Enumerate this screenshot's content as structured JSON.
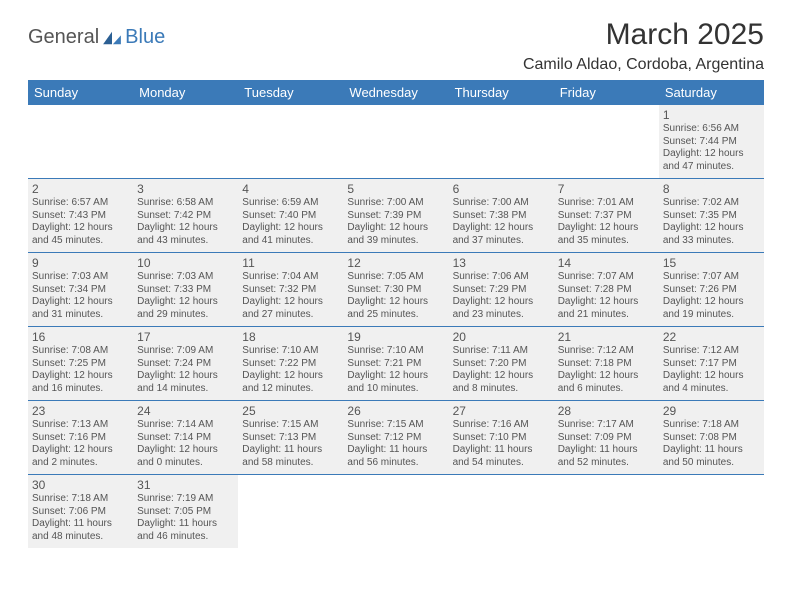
{
  "brand": {
    "part1": "General",
    "part2": "Blue"
  },
  "title": "March 2025",
  "location": "Camilo Aldao, Cordoba, Argentina",
  "dayHeaders": [
    "Sunday",
    "Monday",
    "Tuesday",
    "Wednesday",
    "Thursday",
    "Friday",
    "Saturday"
  ],
  "colors": {
    "accent": "#3b7ab8",
    "headerText": "#ffffff",
    "shade": "#f0f0f0",
    "cellText": "#555555"
  },
  "weeks": [
    [
      null,
      null,
      null,
      null,
      null,
      null,
      {
        "n": "1",
        "sr": "Sunrise: 6:56 AM",
        "ss": "Sunset: 7:44 PM",
        "d1": "Daylight: 12 hours",
        "d2": "and 47 minutes."
      }
    ],
    [
      {
        "n": "2",
        "sr": "Sunrise: 6:57 AM",
        "ss": "Sunset: 7:43 PM",
        "d1": "Daylight: 12 hours",
        "d2": "and 45 minutes."
      },
      {
        "n": "3",
        "sr": "Sunrise: 6:58 AM",
        "ss": "Sunset: 7:42 PM",
        "d1": "Daylight: 12 hours",
        "d2": "and 43 minutes."
      },
      {
        "n": "4",
        "sr": "Sunrise: 6:59 AM",
        "ss": "Sunset: 7:40 PM",
        "d1": "Daylight: 12 hours",
        "d2": "and 41 minutes."
      },
      {
        "n": "5",
        "sr": "Sunrise: 7:00 AM",
        "ss": "Sunset: 7:39 PM",
        "d1": "Daylight: 12 hours",
        "d2": "and 39 minutes."
      },
      {
        "n": "6",
        "sr": "Sunrise: 7:00 AM",
        "ss": "Sunset: 7:38 PM",
        "d1": "Daylight: 12 hours",
        "d2": "and 37 minutes."
      },
      {
        "n": "7",
        "sr": "Sunrise: 7:01 AM",
        "ss": "Sunset: 7:37 PM",
        "d1": "Daylight: 12 hours",
        "d2": "and 35 minutes."
      },
      {
        "n": "8",
        "sr": "Sunrise: 7:02 AM",
        "ss": "Sunset: 7:35 PM",
        "d1": "Daylight: 12 hours",
        "d2": "and 33 minutes."
      }
    ],
    [
      {
        "n": "9",
        "sr": "Sunrise: 7:03 AM",
        "ss": "Sunset: 7:34 PM",
        "d1": "Daylight: 12 hours",
        "d2": "and 31 minutes."
      },
      {
        "n": "10",
        "sr": "Sunrise: 7:03 AM",
        "ss": "Sunset: 7:33 PM",
        "d1": "Daylight: 12 hours",
        "d2": "and 29 minutes."
      },
      {
        "n": "11",
        "sr": "Sunrise: 7:04 AM",
        "ss": "Sunset: 7:32 PM",
        "d1": "Daylight: 12 hours",
        "d2": "and 27 minutes."
      },
      {
        "n": "12",
        "sr": "Sunrise: 7:05 AM",
        "ss": "Sunset: 7:30 PM",
        "d1": "Daylight: 12 hours",
        "d2": "and 25 minutes."
      },
      {
        "n": "13",
        "sr": "Sunrise: 7:06 AM",
        "ss": "Sunset: 7:29 PM",
        "d1": "Daylight: 12 hours",
        "d2": "and 23 minutes."
      },
      {
        "n": "14",
        "sr": "Sunrise: 7:07 AM",
        "ss": "Sunset: 7:28 PM",
        "d1": "Daylight: 12 hours",
        "d2": "and 21 minutes."
      },
      {
        "n": "15",
        "sr": "Sunrise: 7:07 AM",
        "ss": "Sunset: 7:26 PM",
        "d1": "Daylight: 12 hours",
        "d2": "and 19 minutes."
      }
    ],
    [
      {
        "n": "16",
        "sr": "Sunrise: 7:08 AM",
        "ss": "Sunset: 7:25 PM",
        "d1": "Daylight: 12 hours",
        "d2": "and 16 minutes."
      },
      {
        "n": "17",
        "sr": "Sunrise: 7:09 AM",
        "ss": "Sunset: 7:24 PM",
        "d1": "Daylight: 12 hours",
        "d2": "and 14 minutes."
      },
      {
        "n": "18",
        "sr": "Sunrise: 7:10 AM",
        "ss": "Sunset: 7:22 PM",
        "d1": "Daylight: 12 hours",
        "d2": "and 12 minutes."
      },
      {
        "n": "19",
        "sr": "Sunrise: 7:10 AM",
        "ss": "Sunset: 7:21 PM",
        "d1": "Daylight: 12 hours",
        "d2": "and 10 minutes."
      },
      {
        "n": "20",
        "sr": "Sunrise: 7:11 AM",
        "ss": "Sunset: 7:20 PM",
        "d1": "Daylight: 12 hours",
        "d2": "and 8 minutes."
      },
      {
        "n": "21",
        "sr": "Sunrise: 7:12 AM",
        "ss": "Sunset: 7:18 PM",
        "d1": "Daylight: 12 hours",
        "d2": "and 6 minutes."
      },
      {
        "n": "22",
        "sr": "Sunrise: 7:12 AM",
        "ss": "Sunset: 7:17 PM",
        "d1": "Daylight: 12 hours",
        "d2": "and 4 minutes."
      }
    ],
    [
      {
        "n": "23",
        "sr": "Sunrise: 7:13 AM",
        "ss": "Sunset: 7:16 PM",
        "d1": "Daylight: 12 hours",
        "d2": "and 2 minutes."
      },
      {
        "n": "24",
        "sr": "Sunrise: 7:14 AM",
        "ss": "Sunset: 7:14 PM",
        "d1": "Daylight: 12 hours",
        "d2": "and 0 minutes."
      },
      {
        "n": "25",
        "sr": "Sunrise: 7:15 AM",
        "ss": "Sunset: 7:13 PM",
        "d1": "Daylight: 11 hours",
        "d2": "and 58 minutes."
      },
      {
        "n": "26",
        "sr": "Sunrise: 7:15 AM",
        "ss": "Sunset: 7:12 PM",
        "d1": "Daylight: 11 hours",
        "d2": "and 56 minutes."
      },
      {
        "n": "27",
        "sr": "Sunrise: 7:16 AM",
        "ss": "Sunset: 7:10 PM",
        "d1": "Daylight: 11 hours",
        "d2": "and 54 minutes."
      },
      {
        "n": "28",
        "sr": "Sunrise: 7:17 AM",
        "ss": "Sunset: 7:09 PM",
        "d1": "Daylight: 11 hours",
        "d2": "and 52 minutes."
      },
      {
        "n": "29",
        "sr": "Sunrise: 7:18 AM",
        "ss": "Sunset: 7:08 PM",
        "d1": "Daylight: 11 hours",
        "d2": "and 50 minutes."
      }
    ],
    [
      {
        "n": "30",
        "sr": "Sunrise: 7:18 AM",
        "ss": "Sunset: 7:06 PM",
        "d1": "Daylight: 11 hours",
        "d2": "and 48 minutes."
      },
      {
        "n": "31",
        "sr": "Sunrise: 7:19 AM",
        "ss": "Sunset: 7:05 PM",
        "d1": "Daylight: 11 hours",
        "d2": "and 46 minutes."
      },
      null,
      null,
      null,
      null,
      null
    ]
  ]
}
